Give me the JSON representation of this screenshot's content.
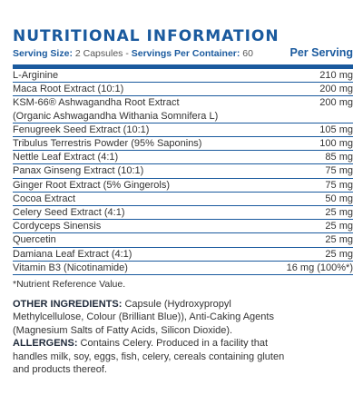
{
  "title": "NUTRITIONAL INFORMATION",
  "serving": {
    "size_label": "Serving Size:",
    "size_value": "2 Capsules",
    "container_label": "Servings Per Container:",
    "container_value": "60",
    "per_serving": "Per Serving"
  },
  "rows": [
    {
      "name": "L-Arginine",
      "amount": "210 mg"
    },
    {
      "name": "Maca Root Extract (10:1)",
      "amount": "200 mg"
    },
    {
      "name": "KSM-66® Ashwagandha Root Extract\n(Organic Ashwagandha Withania Somnifera L)",
      "amount": "200 mg"
    },
    {
      "name": "Fenugreek Seed Extract (10:1)",
      "amount": "105 mg"
    },
    {
      "name": "Tribulus Terrestris Powder (95% Saponins)",
      "amount": "100 mg"
    },
    {
      "name": "Nettle Leaf Extract (4:1)",
      "amount": "85 mg"
    },
    {
      "name": "Panax Ginseng Extract (10:1)",
      "amount": "75 mg"
    },
    {
      "name": "Ginger Root Extract (5% Gingerols)",
      "amount": "75 mg"
    },
    {
      "name": "Cocoa Extract",
      "amount": "50 mg"
    },
    {
      "name": "Celery Seed Extract (4:1)",
      "amount": "25 mg"
    },
    {
      "name": "Cordyceps Sinensis",
      "amount": "25 mg"
    },
    {
      "name": "Quercetin",
      "amount": "25 mg"
    },
    {
      "name": "Damiana Leaf Extract (4:1)",
      "amount": "25 mg"
    },
    {
      "name": "Vitamin B3 (Nicotinamide)",
      "amount": "16 mg (100%*)"
    }
  ],
  "footnote": "*Nutrient Reference Value.",
  "other_ingredients": {
    "label": "OTHER INGREDIENTS:",
    "text": " Capsule (Hydroxypropyl Methylcellulose, Colour (Brilliant Blue)), Anti-Caking Agents (Magnesium Salts of Fatty Acids, Silicon Dioxide). "
  },
  "allergens": {
    "label": "ALLERGENS:",
    "text": " Contains Celery. Produced in a facility that handles milk, soy, eggs, fish, celery, cereals containing gluten and products thereof."
  },
  "colors": {
    "accent": "#1a5a9e",
    "text": "#333333"
  }
}
